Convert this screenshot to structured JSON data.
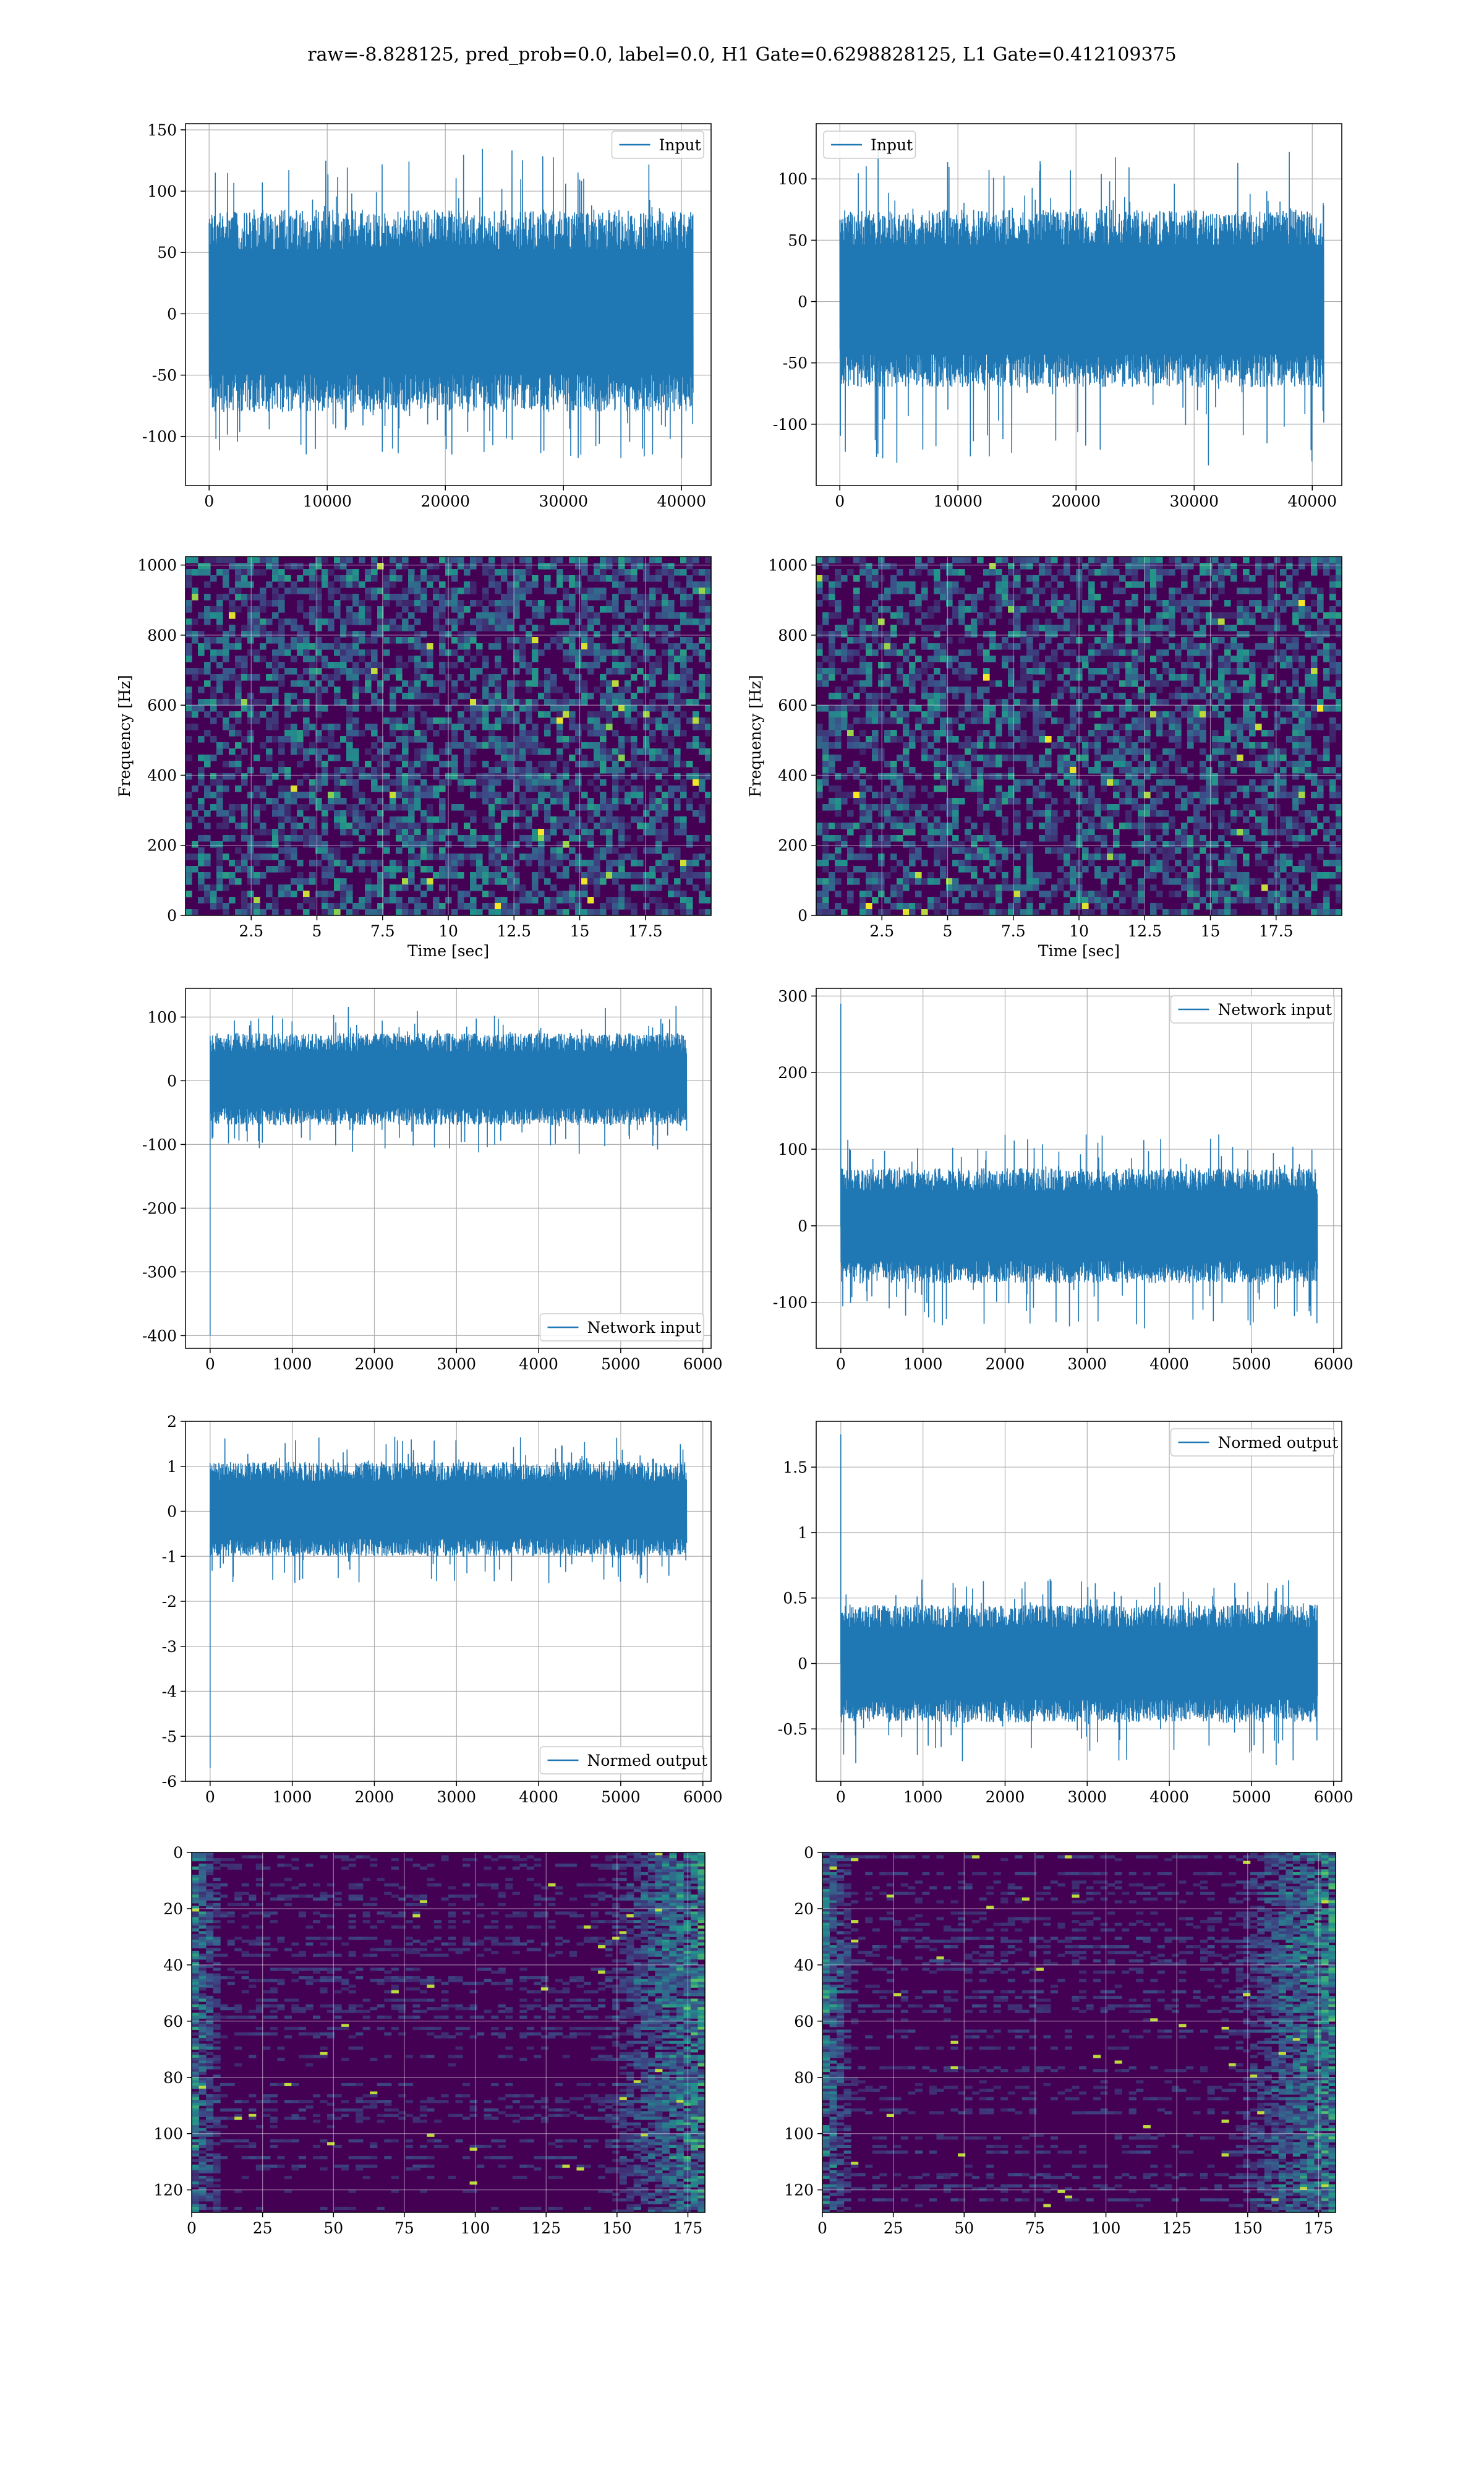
{
  "title": "raw=-8.828125, pred_prob=0.0, label=0.0, H1 Gate=0.6298828125, L1 Gate=0.412109375",
  "colors": {
    "line": "#1f77b4",
    "axes": "#000000",
    "grid": "#b0b0b0",
    "viridis_low": "#440154",
    "viridis_mid": "#21908d",
    "viridis_high": "#fde725"
  },
  "chart_data": [
    {
      "id": "input-h1",
      "type": "line",
      "title": "",
      "xlabel": "",
      "ylabel": "",
      "xlim": [
        -2000,
        42500
      ],
      "ylim": [
        -140,
        155
      ],
      "xticks": [
        0,
        10000,
        20000,
        30000,
        40000
      ],
      "yticks": [
        -100,
        -50,
        0,
        50,
        100,
        150
      ],
      "grid": true,
      "legend": "upper right",
      "series": [
        {
          "name": "Input",
          "x_range": [
            0,
            40960
          ],
          "envelope": {
            "low": -120,
            "high": 135,
            "typical_low": -80,
            "typical_high": 85
          }
        }
      ]
    },
    {
      "id": "input-l1",
      "type": "line",
      "title": "",
      "xlabel": "",
      "ylabel": "",
      "xlim": [
        -2000,
        42500
      ],
      "ylim": [
        -150,
        145
      ],
      "xticks": [
        0,
        10000,
        20000,
        30000,
        40000
      ],
      "yticks": [
        -100,
        -50,
        0,
        50,
        100
      ],
      "grid": true,
      "legend": "upper left",
      "series": [
        {
          "name": "Input",
          "x_range": [
            0,
            40960
          ],
          "envelope": {
            "low": -135,
            "high": 125,
            "typical_low": -70,
            "typical_high": 75
          }
        }
      ]
    },
    {
      "id": "spectrogram-h1",
      "type": "heatmap",
      "title": "",
      "xlabel": "Time [sec]",
      "ylabel": "Frequency [Hz]",
      "xlim": [
        0,
        20
      ],
      "ylim": [
        0,
        1024
      ],
      "xticks": [
        2.5,
        5.0,
        7.5,
        10.0,
        12.5,
        15.0,
        17.5
      ],
      "yticks": [
        0,
        200,
        400,
        600,
        800,
        1000
      ],
      "grid": true,
      "colormap": "viridis"
    },
    {
      "id": "spectrogram-l1",
      "type": "heatmap",
      "title": "",
      "xlabel": "Time [sec]",
      "ylabel": "Frequency [Hz]",
      "xlim": [
        0,
        20
      ],
      "ylim": [
        0,
        1024
      ],
      "xticks": [
        2.5,
        5.0,
        7.5,
        10.0,
        12.5,
        15.0,
        17.5
      ],
      "yticks": [
        0,
        200,
        400,
        600,
        800,
        1000
      ],
      "grid": true,
      "colormap": "viridis"
    },
    {
      "id": "network-input-h1",
      "type": "line",
      "title": "",
      "xlabel": "",
      "ylabel": "",
      "xlim": [
        -300,
        6100
      ],
      "ylim": [
        -420,
        145
      ],
      "xticks": [
        0,
        1000,
        2000,
        3000,
        4000,
        5000,
        6000
      ],
      "yticks": [
        -400,
        -300,
        -200,
        -100,
        0,
        100
      ],
      "grid": true,
      "legend": "lower right",
      "series": [
        {
          "name": "Network input",
          "x_range": [
            0,
            5800
          ],
          "spike": {
            "x": 0,
            "y": -400
          },
          "envelope": {
            "low": -115,
            "high": 120,
            "typical_low": -70,
            "typical_high": 75
          }
        }
      ]
    },
    {
      "id": "network-input-l1",
      "type": "line",
      "title": "",
      "xlabel": "",
      "ylabel": "",
      "xlim": [
        -300,
        6100
      ],
      "ylim": [
        -160,
        310
      ],
      "xticks": [
        0,
        1000,
        2000,
        3000,
        4000,
        5000,
        6000
      ],
      "yticks": [
        -100,
        0,
        100,
        200,
        300
      ],
      "grid": true,
      "legend": "upper right",
      "series": [
        {
          "name": "Network input",
          "x_range": [
            0,
            5800
          ],
          "spike": {
            "x": 0,
            "y": 290
          },
          "envelope": {
            "low": -135,
            "high": 120,
            "typical_low": -75,
            "typical_high": 75
          }
        }
      ]
    },
    {
      "id": "normed-output-h1",
      "type": "line",
      "title": "",
      "xlabel": "",
      "ylabel": "",
      "xlim": [
        -300,
        6100
      ],
      "ylim": [
        -6,
        2
      ],
      "xticks": [
        0,
        1000,
        2000,
        3000,
        4000,
        5000,
        6000
      ],
      "yticks": [
        -6,
        -5,
        -4,
        -3,
        -2,
        -1,
        0,
        1,
        2
      ],
      "grid": true,
      "legend": "lower right",
      "series": [
        {
          "name": "Normed output",
          "x_range": [
            0,
            5800
          ],
          "spike": {
            "x": 0,
            "y": -5.7
          },
          "envelope": {
            "low": -1.6,
            "high": 1.7,
            "typical_low": -1.0,
            "typical_high": 1.1
          }
        }
      ]
    },
    {
      "id": "normed-output-l1",
      "type": "line",
      "title": "",
      "xlabel": "",
      "ylabel": "",
      "xlim": [
        -300,
        6100
      ],
      "ylim": [
        -0.9,
        1.85
      ],
      "xticks": [
        0,
        1000,
        2000,
        3000,
        4000,
        5000,
        6000
      ],
      "yticks": [
        -0.5,
        0.0,
        0.5,
        1.0,
        1.5
      ],
      "grid": true,
      "legend": "upper right",
      "series": [
        {
          "name": "Normed output",
          "x_range": [
            0,
            5800
          ],
          "spike": {
            "x": 0,
            "y": 1.75
          },
          "envelope": {
            "low": -0.8,
            "high": 0.65,
            "typical_low": -0.45,
            "typical_high": 0.45
          }
        }
      ]
    },
    {
      "id": "feature-map-h1",
      "type": "heatmap",
      "title": "",
      "xlabel": "",
      "ylabel": "",
      "xlim": [
        0,
        181
      ],
      "ylim": [
        128,
        0
      ],
      "xticks": [
        0,
        25,
        50,
        75,
        100,
        125,
        150,
        175
      ],
      "yticks": [
        0,
        20,
        40,
        60,
        80,
        100,
        120
      ],
      "grid": true,
      "colormap": "viridis"
    },
    {
      "id": "feature-map-l1",
      "type": "heatmap",
      "title": "",
      "xlabel": "",
      "ylabel": "",
      "xlim": [
        0,
        181
      ],
      "ylim": [
        128,
        0
      ],
      "xticks": [
        0,
        25,
        50,
        75,
        100,
        125,
        150,
        175
      ],
      "yticks": [
        0,
        20,
        40,
        60,
        80,
        100,
        120
      ],
      "grid": true,
      "colormap": "viridis"
    }
  ]
}
